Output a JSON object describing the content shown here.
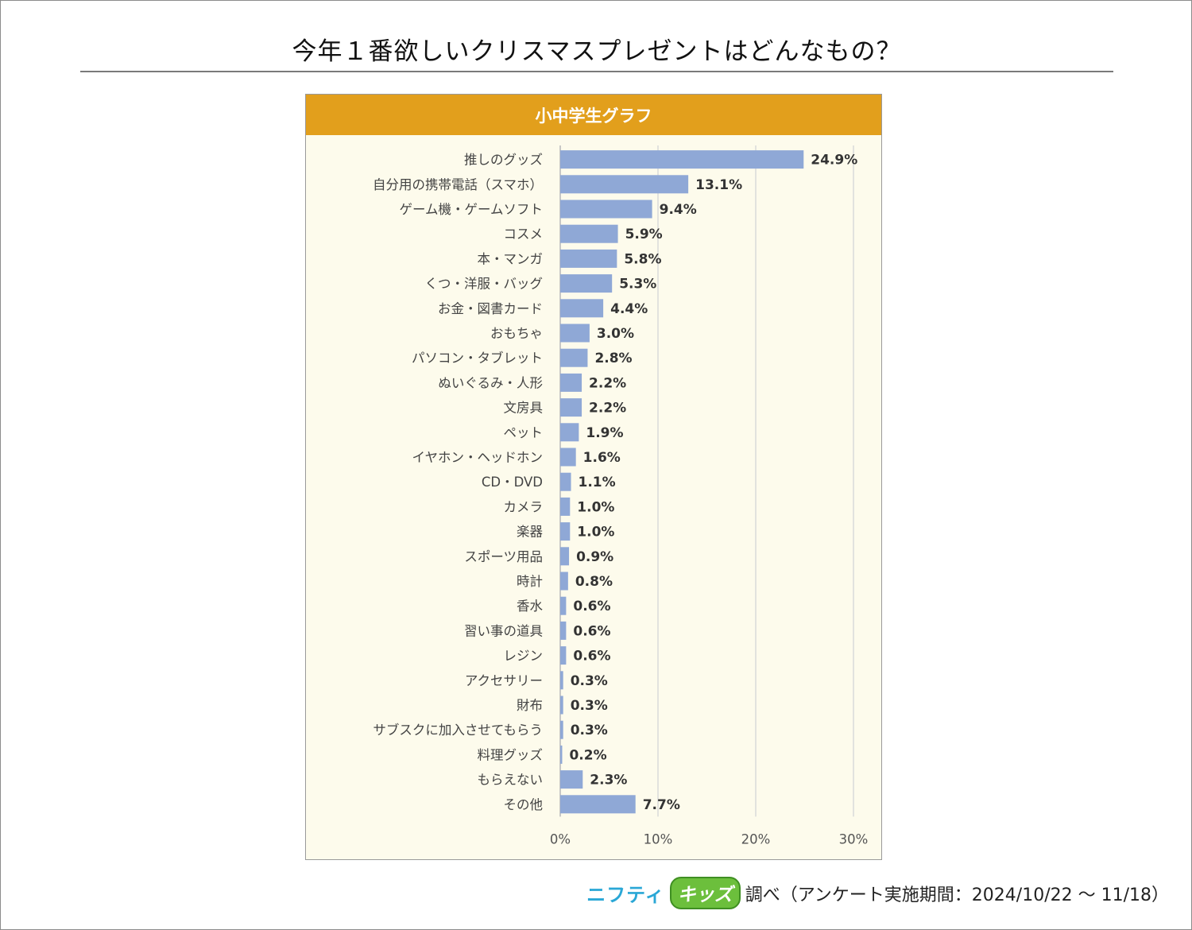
{
  "title": "今年１番欲しいクリスマスプレゼントはどんなもの？",
  "chart_header": "小中学生グラフ",
  "footer": {
    "brand_part1": "ニフティ",
    "brand_part2": "キッズ",
    "note": "調べ（アンケート実施期間：2024/10/22 ～ 11/18）"
  },
  "colors": {
    "bar": "#8fa8d6",
    "header": "#e29f1c",
    "plot_bg": "#fdfbec",
    "grid": "#dadada"
  },
  "chart_data": {
    "type": "bar",
    "orientation": "horizontal",
    "title": "小中学生グラフ",
    "xlabel": "",
    "ylabel": "",
    "xlim": [
      0,
      30
    ],
    "ticks": [
      0,
      10,
      20,
      30
    ],
    "tick_labels": [
      "0%",
      "10%",
      "20%",
      "30%"
    ],
    "grid": true,
    "categories": [
      "推しのグッズ",
      "自分用の携帯電話（スマホ）",
      "ゲーム機・ゲームソフト",
      "コスメ",
      "本・マンガ",
      "くつ・洋服・バッグ",
      "お金・図書カード",
      "おもちゃ",
      "パソコン・タブレット",
      "ぬいぐるみ・人形",
      "文房具",
      "ペット",
      "イヤホン・ヘッドホン",
      "CD・DVD",
      "カメラ",
      "楽器",
      "スポーツ用品",
      "時計",
      "香水",
      "習い事の道具",
      "レジン",
      "アクセサリー",
      "財布",
      "サブスクに加入させてもらう",
      "料理グッズ",
      "もらえない",
      "その他"
    ],
    "values": [
      24.9,
      13.1,
      9.4,
      5.9,
      5.8,
      5.3,
      4.4,
      3.0,
      2.8,
      2.2,
      2.2,
      1.9,
      1.6,
      1.1,
      1.0,
      1.0,
      0.9,
      0.8,
      0.6,
      0.6,
      0.6,
      0.3,
      0.3,
      0.3,
      0.2,
      2.3,
      7.7
    ],
    "value_labels": [
      "24.9%",
      "13.1%",
      "9.4%",
      "5.9%",
      "5.8%",
      "5.3%",
      "4.4%",
      "3.0%",
      "2.8%",
      "2.2%",
      "2.2%",
      "1.9%",
      "1.6%",
      "1.1%",
      "1.0%",
      "1.0%",
      "0.9%",
      "0.8%",
      "0.6%",
      "0.6%",
      "0.6%",
      "0.3%",
      "0.3%",
      "0.3%",
      "0.2%",
      "2.3%",
      "7.7%"
    ]
  }
}
